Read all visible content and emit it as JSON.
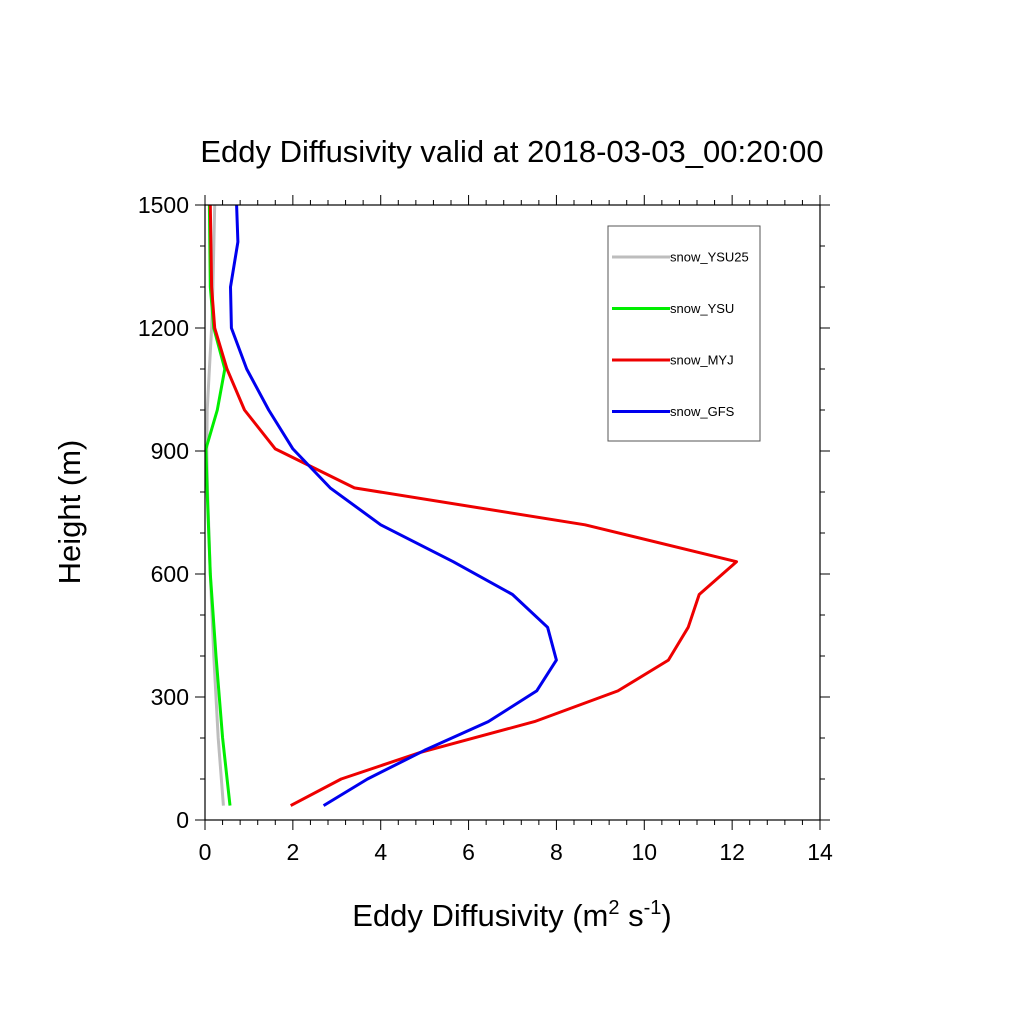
{
  "chart_data": {
    "type": "line",
    "title": "Eddy Diffusivity valid at 2018-03-03_00:20:00",
    "xlabel": {
      "base": "Eddy Diffusivity (m",
      "sup1": "2",
      "mid": " s",
      "sup2": "-1",
      "end": ")"
    },
    "ylabel": "Height (m)",
    "xlim": [
      0,
      14
    ],
    "ylim": [
      0,
      1500
    ],
    "x_ticks": [
      "0",
      "2",
      "4",
      "6",
      "8",
      "10",
      "12",
      "14"
    ],
    "y_ticks": [
      "0",
      "300",
      "600",
      "900",
      "1200",
      "1500"
    ],
    "grid": false,
    "legend_position": "top-right",
    "series": [
      {
        "name": "snow_YSU25",
        "color": "#bdbdbd",
        "points": [
          [
            0.42,
            35
          ],
          [
            0.3,
            200
          ],
          [
            0.2,
            400
          ],
          [
            0.12,
            600
          ],
          [
            0.06,
            800
          ],
          [
            0.04,
            900
          ],
          [
            0.05,
            1000
          ],
          [
            0.1,
            1100
          ],
          [
            0.15,
            1200
          ],
          [
            0.18,
            1300
          ],
          [
            0.2,
            1400
          ],
          [
            0.22,
            1500
          ]
        ]
      },
      {
        "name": "snow_YSU",
        "color": "#00ee00",
        "points": [
          [
            0.57,
            35
          ],
          [
            0.4,
            200
          ],
          [
            0.25,
            400
          ],
          [
            0.12,
            600
          ],
          [
            0.05,
            800
          ],
          [
            0.02,
            905
          ],
          [
            0.28,
            1000
          ],
          [
            0.45,
            1100
          ],
          [
            0.2,
            1200
          ],
          [
            0.12,
            1300
          ],
          [
            0.1,
            1500
          ]
        ]
      },
      {
        "name": "snow_MYJ",
        "color": "#ee0000",
        "points": [
          [
            1.95,
            35
          ],
          [
            3.1,
            100
          ],
          [
            4.9,
            165
          ],
          [
            7.5,
            240
          ],
          [
            9.4,
            315
          ],
          [
            10.55,
            390
          ],
          [
            11.0,
            470
          ],
          [
            11.25,
            550
          ],
          [
            12.1,
            630
          ],
          [
            8.65,
            720
          ],
          [
            3.4,
            810
          ],
          [
            1.6,
            905
          ],
          [
            0.9,
            1000
          ],
          [
            0.5,
            1100
          ],
          [
            0.22,
            1200
          ],
          [
            0.15,
            1300
          ],
          [
            0.12,
            1500
          ]
        ]
      },
      {
        "name": "snow_GFS",
        "color": "#0000ee",
        "points": [
          [
            2.7,
            35
          ],
          [
            3.7,
            100
          ],
          [
            5.0,
            170
          ],
          [
            6.45,
            240
          ],
          [
            7.55,
            315
          ],
          [
            8.0,
            390
          ],
          [
            7.8,
            470
          ],
          [
            7.0,
            550
          ],
          [
            5.65,
            630
          ],
          [
            4.0,
            720
          ],
          [
            2.85,
            810
          ],
          [
            2.0,
            905
          ],
          [
            1.45,
            1000
          ],
          [
            0.95,
            1100
          ],
          [
            0.6,
            1200
          ],
          [
            0.58,
            1300
          ],
          [
            0.75,
            1410
          ],
          [
            0.72,
            1500
          ]
        ]
      }
    ]
  }
}
